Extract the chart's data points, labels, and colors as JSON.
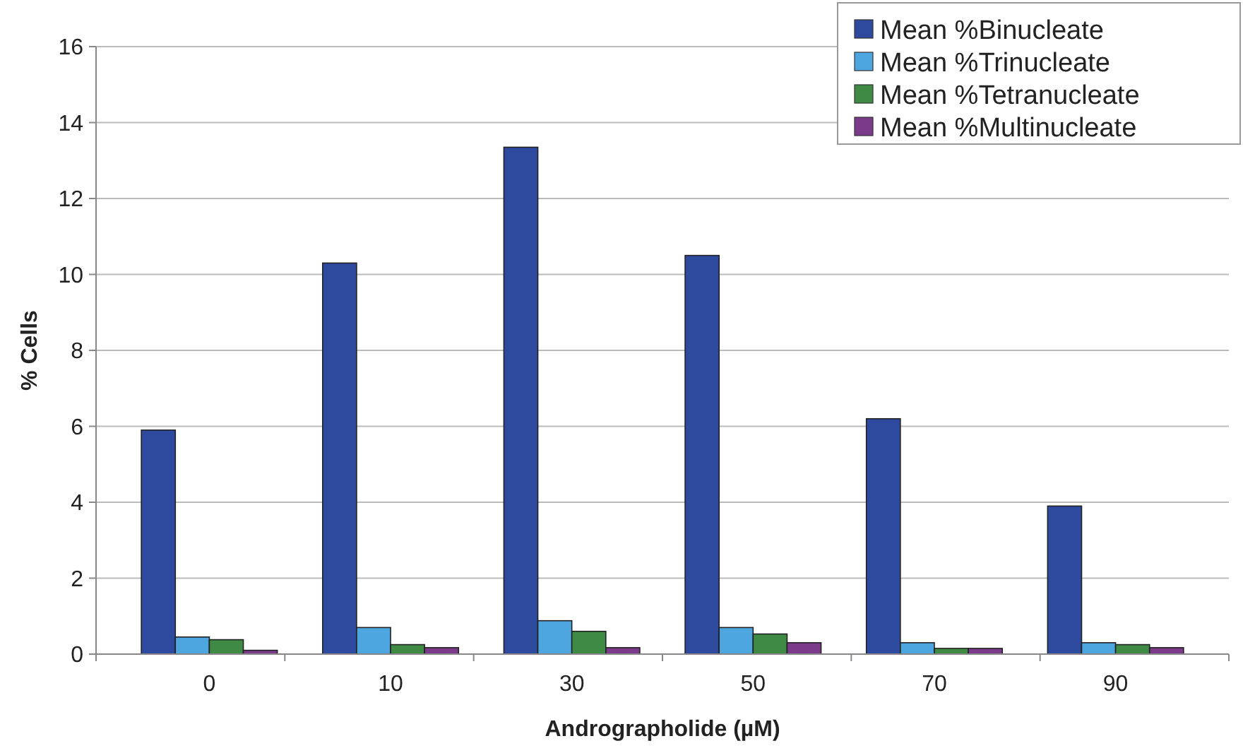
{
  "chart_data": {
    "type": "bar",
    "xlabel": "Andrographolide (µM)",
    "ylabel": "% Cells",
    "categories": [
      "0",
      "10",
      "30",
      "50",
      "70",
      "90"
    ],
    "series": [
      {
        "name": "Mean %Binucleate",
        "color": "#2e4a9e",
        "values": [
          5.9,
          10.3,
          13.35,
          10.5,
          6.2,
          3.9
        ]
      },
      {
        "name": "Mean %Trinucleate",
        "color": "#4ea6e0",
        "values": [
          0.45,
          0.7,
          0.88,
          0.7,
          0.3,
          0.3
        ]
      },
      {
        "name": "Mean %Tetranucleate",
        "color": "#3f8a45",
        "values": [
          0.38,
          0.25,
          0.6,
          0.53,
          0.15,
          0.25
        ]
      },
      {
        "name": "Mean %Multinucleate",
        "color": "#7b3a8a",
        "values": [
          0.1,
          0.17,
          0.17,
          0.3,
          0.15,
          0.17
        ]
      }
    ],
    "ylim": [
      0,
      16
    ],
    "yticks": [
      0,
      2,
      4,
      6,
      8,
      10,
      12,
      14,
      16
    ],
    "grid": "y",
    "legend": "top right"
  }
}
